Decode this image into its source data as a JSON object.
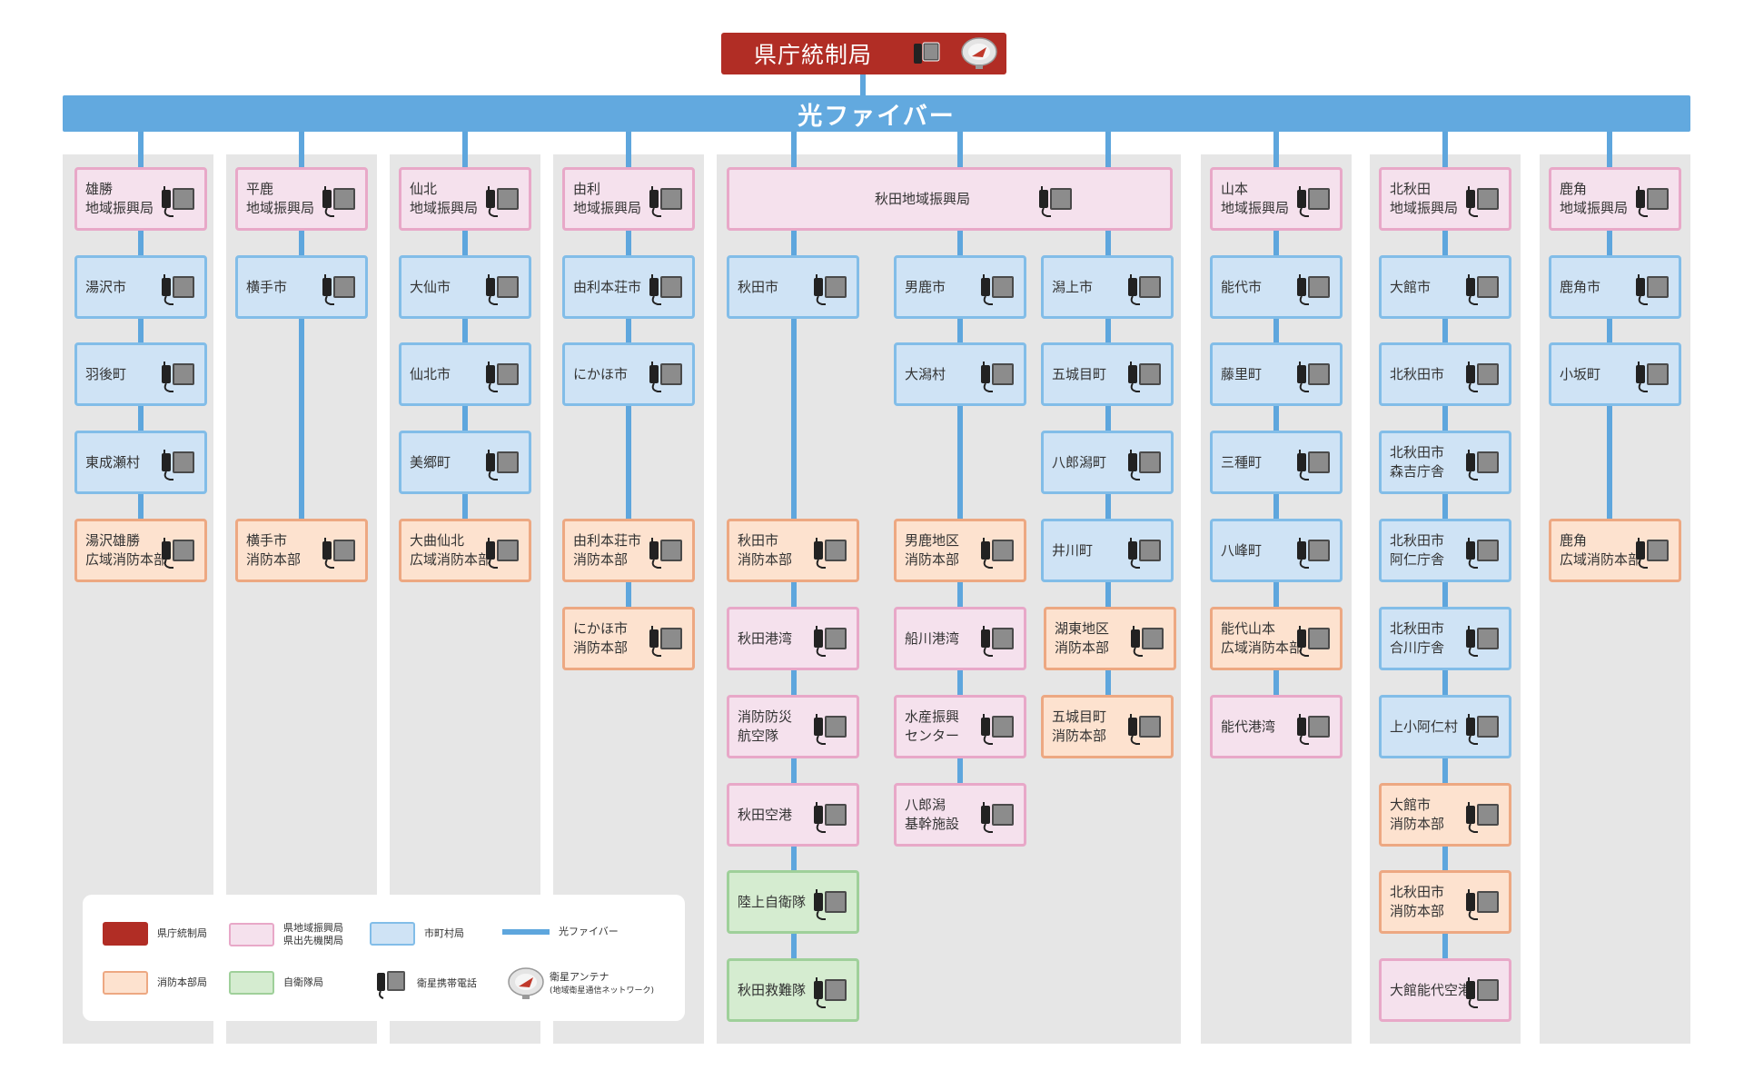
{
  "title": "県庁統制局",
  "fiber_label": "光ファイバー",
  "colors": {
    "hq": "#b12d25",
    "fiber": "#62a9df",
    "pink": "#f5e1ed",
    "blue": "#cfe3f5",
    "orange": "#fde2cf",
    "green": "#d5ecd0",
    "column_bg": "#e6e6e6"
  },
  "nodes": [
    {
      "text": "雄勝\n地域振興局",
      "type": "pink"
    },
    {
      "text": "湯沢市",
      "type": "blue"
    },
    {
      "text": "羽後町",
      "type": "blue"
    },
    {
      "text": "東成瀬村",
      "type": "blue"
    },
    {
      "text": "湯沢雄勝\n広域消防本部",
      "type": "orange"
    },
    {
      "text": "平鹿\n地域振興局",
      "type": "pink"
    },
    {
      "text": "横手市",
      "type": "blue"
    },
    {
      "text": "横手市\n消防本部",
      "type": "orange"
    },
    {
      "text": "仙北\n地域振興局",
      "type": "pink"
    },
    {
      "text": "大仙市",
      "type": "blue"
    },
    {
      "text": "仙北市",
      "type": "blue"
    },
    {
      "text": "美郷町",
      "type": "blue"
    },
    {
      "text": "大曲仙北\n広域消防本部",
      "type": "orange"
    },
    {
      "text": "由利\n地域振興局",
      "type": "pink"
    },
    {
      "text": "由利本荘市",
      "type": "blue"
    },
    {
      "text": "にかほ市",
      "type": "blue"
    },
    {
      "text": "由利本荘市\n消防本部",
      "type": "orange"
    },
    {
      "text": "にかほ市\n消防本部",
      "type": "orange"
    },
    {
      "text": "秋田地域振興局",
      "type": "pink"
    },
    {
      "text": "秋田市",
      "type": "blue"
    },
    {
      "text": "秋田市\n消防本部",
      "type": "orange"
    },
    {
      "text": "秋田港湾",
      "type": "pink"
    },
    {
      "text": "消防防災\n航空隊",
      "type": "pink"
    },
    {
      "text": "秋田空港",
      "type": "pink"
    },
    {
      "text": "陸上自衛隊",
      "type": "green"
    },
    {
      "text": "秋田救難隊",
      "type": "green"
    },
    {
      "text": "男鹿市",
      "type": "blue"
    },
    {
      "text": "大潟村",
      "type": "blue"
    },
    {
      "text": "男鹿地区\n消防本部",
      "type": "orange"
    },
    {
      "text": "船川港湾",
      "type": "pink"
    },
    {
      "text": "水産振興\nセンター",
      "type": "pink"
    },
    {
      "text": "八郎潟\n基幹施設",
      "type": "pink"
    },
    {
      "text": "潟上市",
      "type": "blue"
    },
    {
      "text": "五城目町",
      "type": "blue"
    },
    {
      "text": "八郎潟町",
      "type": "blue"
    },
    {
      "text": "井川町",
      "type": "blue"
    },
    {
      "text": "湖東地区\n消防本部",
      "type": "orange"
    },
    {
      "text": "五城目町\n消防本部",
      "type": "orange"
    },
    {
      "text": "山本\n地域振興局",
      "type": "pink"
    },
    {
      "text": "能代市",
      "type": "blue"
    },
    {
      "text": "藤里町",
      "type": "blue"
    },
    {
      "text": "三種町",
      "type": "blue"
    },
    {
      "text": "八峰町",
      "type": "blue"
    },
    {
      "text": "能代山本\n広域消防本部",
      "type": "orange"
    },
    {
      "text": "能代港湾",
      "type": "pink"
    },
    {
      "text": "北秋田\n地域振興局",
      "type": "pink"
    },
    {
      "text": "大館市",
      "type": "blue"
    },
    {
      "text": "北秋田市",
      "type": "blue"
    },
    {
      "text": "北秋田市\n森吉庁舎",
      "type": "blue"
    },
    {
      "text": "北秋田市\n阿仁庁舎",
      "type": "blue"
    },
    {
      "text": "北秋田市\n合川庁舎",
      "type": "blue"
    },
    {
      "text": "上小阿仁村",
      "type": "blue"
    },
    {
      "text": "大館市\n消防本部",
      "type": "orange"
    },
    {
      "text": "北秋田市\n消防本部",
      "type": "orange"
    },
    {
      "text": "大館能代空港",
      "type": "pink"
    },
    {
      "text": "鹿角\n地域振興局",
      "type": "pink"
    },
    {
      "text": "鹿角市",
      "type": "blue"
    },
    {
      "text": "小坂町",
      "type": "blue"
    },
    {
      "text": "鹿角\n広域消防本部",
      "type": "orange"
    }
  ],
  "legend": {
    "hq": "県庁統制局",
    "regional": "県地域振興局\n県出先機関局",
    "municipal": "市町村局",
    "fiber": "光ファイバー",
    "fire": "消防本部局",
    "sdf": "自衛隊局",
    "phone": "衛星携帯電話",
    "antenna": "衛星アンテナ",
    "antenna_sub": "(地域衛星通信ネットワーク)"
  }
}
